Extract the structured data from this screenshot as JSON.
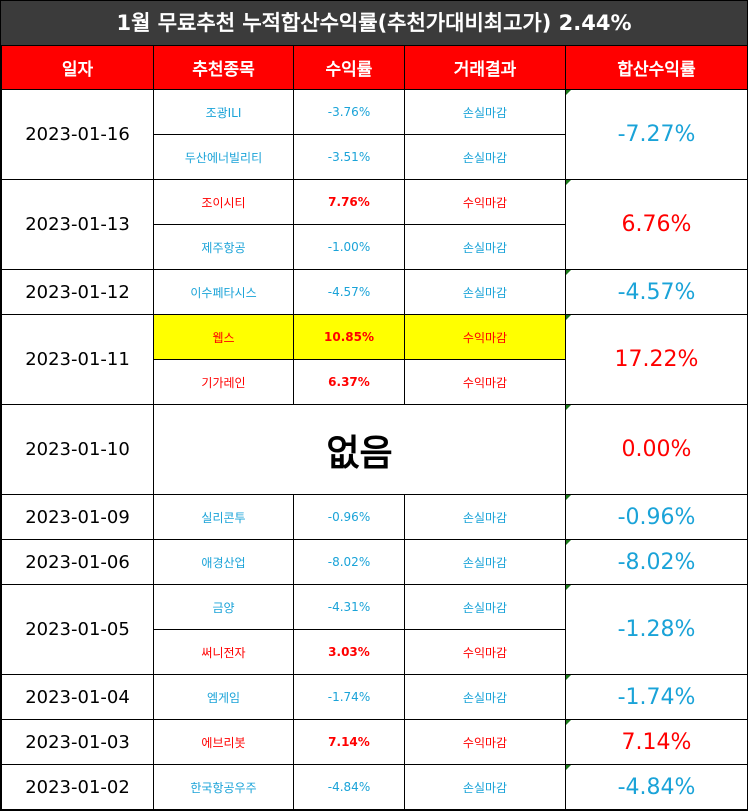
{
  "title": "1월 무료추천 누적합산수익률(추천가대비최고가) 2.44%",
  "headers": [
    "일자",
    "추천종목",
    "수익률",
    "거래결과",
    "합산수익률"
  ],
  "groups": [
    {
      "date": "2023-01-16",
      "total": "-7.27%",
      "rows": [
        {
          "stock": "조광ILI",
          "rate": "-3.76%",
          "result": "손실마감"
        },
        {
          "stock": "두산에너빌리티",
          "rate": "-3.51%",
          "result": "손실마감"
        }
      ]
    },
    {
      "date": "2023-01-13",
      "total": "6.76%",
      "rows": [
        {
          "stock": "조이시티",
          "rate": "7.76%",
          "result": "수익마감"
        },
        {
          "stock": "제주항공",
          "rate": "-1.00%",
          "result": "손실마감"
        }
      ]
    },
    {
      "date": "2023-01-12",
      "total": "-4.57%",
      "rows": [
        {
          "stock": "이수페타시스",
          "rate": "-4.57%",
          "result": "손실마감"
        }
      ]
    },
    {
      "date": "2023-01-11",
      "total": "17.22%",
      "rows": [
        {
          "stock": "웹스",
          "rate": "10.85%",
          "result": "수익마감"
        },
        {
          "stock": "기가레인",
          "rate": "6.37%",
          "result": "수익마감"
        }
      ]
    },
    {
      "date": "2023-01-10",
      "total": "0.00%",
      "none": "없음"
    },
    {
      "date": "2023-01-09",
      "total": "-0.96%",
      "rows": [
        {
          "stock": "실리콘투",
          "rate": "-0.96%",
          "result": "손실마감"
        }
      ]
    },
    {
      "date": "2023-01-06",
      "total": "-8.02%",
      "rows": [
        {
          "stock": "애경산업",
          "rate": "-8.02%",
          "result": "손실마감"
        }
      ]
    },
    {
      "date": "2023-01-05",
      "total": "-1.28%",
      "rows": [
        {
          "stock": "금양",
          "rate": "-4.31%",
          "result": "손실마감"
        },
        {
          "stock": "써니전자",
          "rate": "3.03%",
          "result": "수익마감"
        }
      ]
    },
    {
      "date": "2023-01-04",
      "total": "-1.74%",
      "rows": [
        {
          "stock": "엠게임",
          "rate": "-1.74%",
          "result": "손실마감"
        }
      ]
    },
    {
      "date": "2023-01-03",
      "total": "7.14%",
      "rows": [
        {
          "stock": "에브리봇",
          "rate": "7.14%",
          "result": "수익마감"
        }
      ]
    },
    {
      "date": "2023-01-02",
      "total": "-4.84%",
      "rows": [
        {
          "stock": "한국항공우주",
          "rate": "-4.84%",
          "result": "손실마감"
        }
      ]
    }
  ]
}
